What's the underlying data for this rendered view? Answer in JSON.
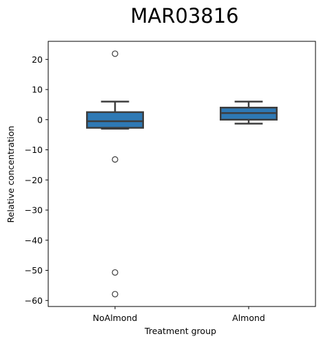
{
  "chart_data": {
    "type": "box",
    "title": "MAR03816",
    "xlabel": "Treatment group",
    "ylabel": "Relative concentration",
    "categories": [
      "NoAlmond",
      "Almond"
    ],
    "ylim": [
      -62,
      26
    ],
    "yticks": [
      20,
      10,
      0,
      -10,
      -20,
      -30,
      -40,
      -50,
      -60
    ],
    "grid": false,
    "box_color": "#2e79b5",
    "edge_color": "#3d3d3d",
    "boxes": [
      {
        "name": "NoAlmond",
        "whisker_low": -3.0,
        "q1": -2.7,
        "median": -0.5,
        "q3": 2.5,
        "whisker_high": 6.0,
        "outliers": [
          21.9,
          -13.2,
          -50.7,
          -57.9
        ]
      },
      {
        "name": "Almond",
        "whisker_low": -1.3,
        "q1": 0.0,
        "median": 2.2,
        "q3": 4.0,
        "whisker_high": 6.0,
        "outliers": []
      }
    ]
  }
}
